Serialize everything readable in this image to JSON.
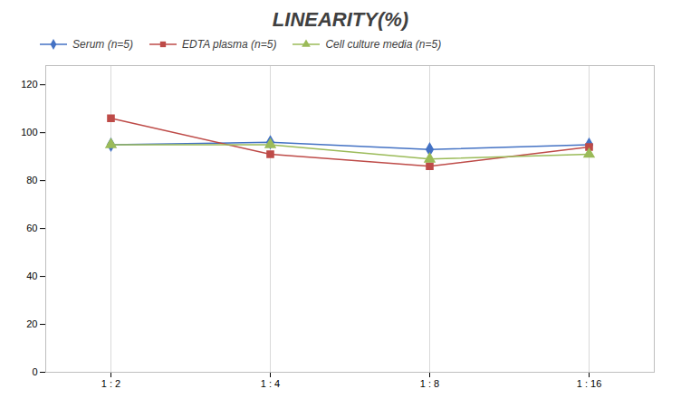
{
  "chart_data": {
    "type": "line",
    "title": "LINEARITY(%)",
    "categories": [
      "1 : 2",
      "1 : 4",
      "1 : 8",
      "1 : 16"
    ],
    "series": [
      {
        "name": "Serum (n=5)",
        "color": "#4472C4",
        "marker": "diamond",
        "values": [
          95.0,
          96.0,
          93.0,
          95.0
        ]
      },
      {
        "name": "EDTA plasma (n=5)",
        "color": "#BE4B48",
        "marker": "square",
        "values": [
          106.0,
          91.0,
          86.0,
          94.0
        ]
      },
      {
        "name": "Cell culture media (n=5)",
        "color": "#9BBB59",
        "marker": "triangle",
        "values": [
          95.0,
          95.0,
          89.0,
          91.0
        ]
      }
    ],
    "ylim": [
      0,
      128
    ],
    "yticks": [
      0,
      20,
      40,
      60,
      80,
      100,
      120
    ],
    "grid": "x",
    "legend": "top"
  }
}
